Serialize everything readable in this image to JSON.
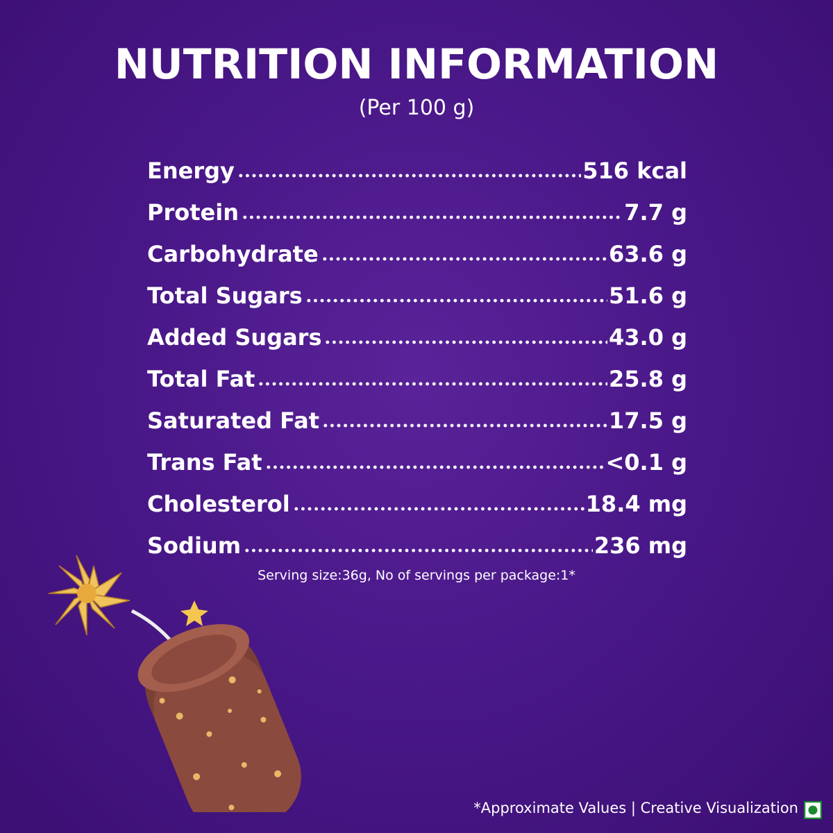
{
  "header": {
    "title": "NUTRITION INFORMATION",
    "subtitle": "(Per 100 g)"
  },
  "table": {
    "rows": [
      [
        "Energy",
        "516 kcal"
      ],
      [
        "Protein",
        "7.7 g"
      ],
      [
        "Carbohydrate",
        "63.6 g"
      ],
      [
        "Total Sugars",
        "51.6 g"
      ],
      [
        "Added Sugars",
        "43.0 g"
      ],
      [
        "Total Fat",
        "25.8 g"
      ],
      [
        "Saturated Fat",
        "17.5 g"
      ],
      [
        "Trans Fat",
        "<0.1 g"
      ],
      [
        "Cholesterol",
        "18.4 mg"
      ],
      [
        "Sodium",
        "236 mg"
      ]
    ]
  },
  "serving_note": "Serving size:36g, No of servings per package:1*",
  "footer": "*Approximate Values | Creative Visualization"
}
